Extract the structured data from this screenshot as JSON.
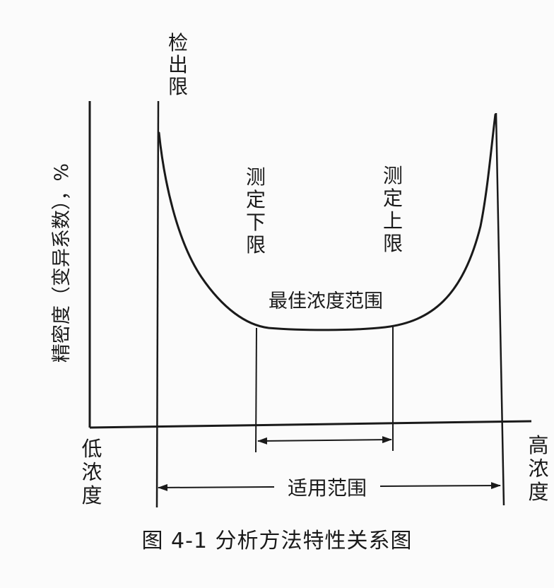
{
  "labels": {
    "y_axis": "精密度（变异系数），%",
    "detection_limit": "检出限",
    "lower_limit": "测定下限",
    "upper_limit": "测定上限",
    "optimal_range": "最佳浓度范围",
    "low_concentration": "低浓度",
    "high_concentration": "高浓度",
    "applicable_range": "适用范围"
  },
  "caption": "图 4-1   分析方法特性关系图",
  "colors": {
    "ink": "#1a1a1a",
    "background": "#fbfbfb"
  }
}
